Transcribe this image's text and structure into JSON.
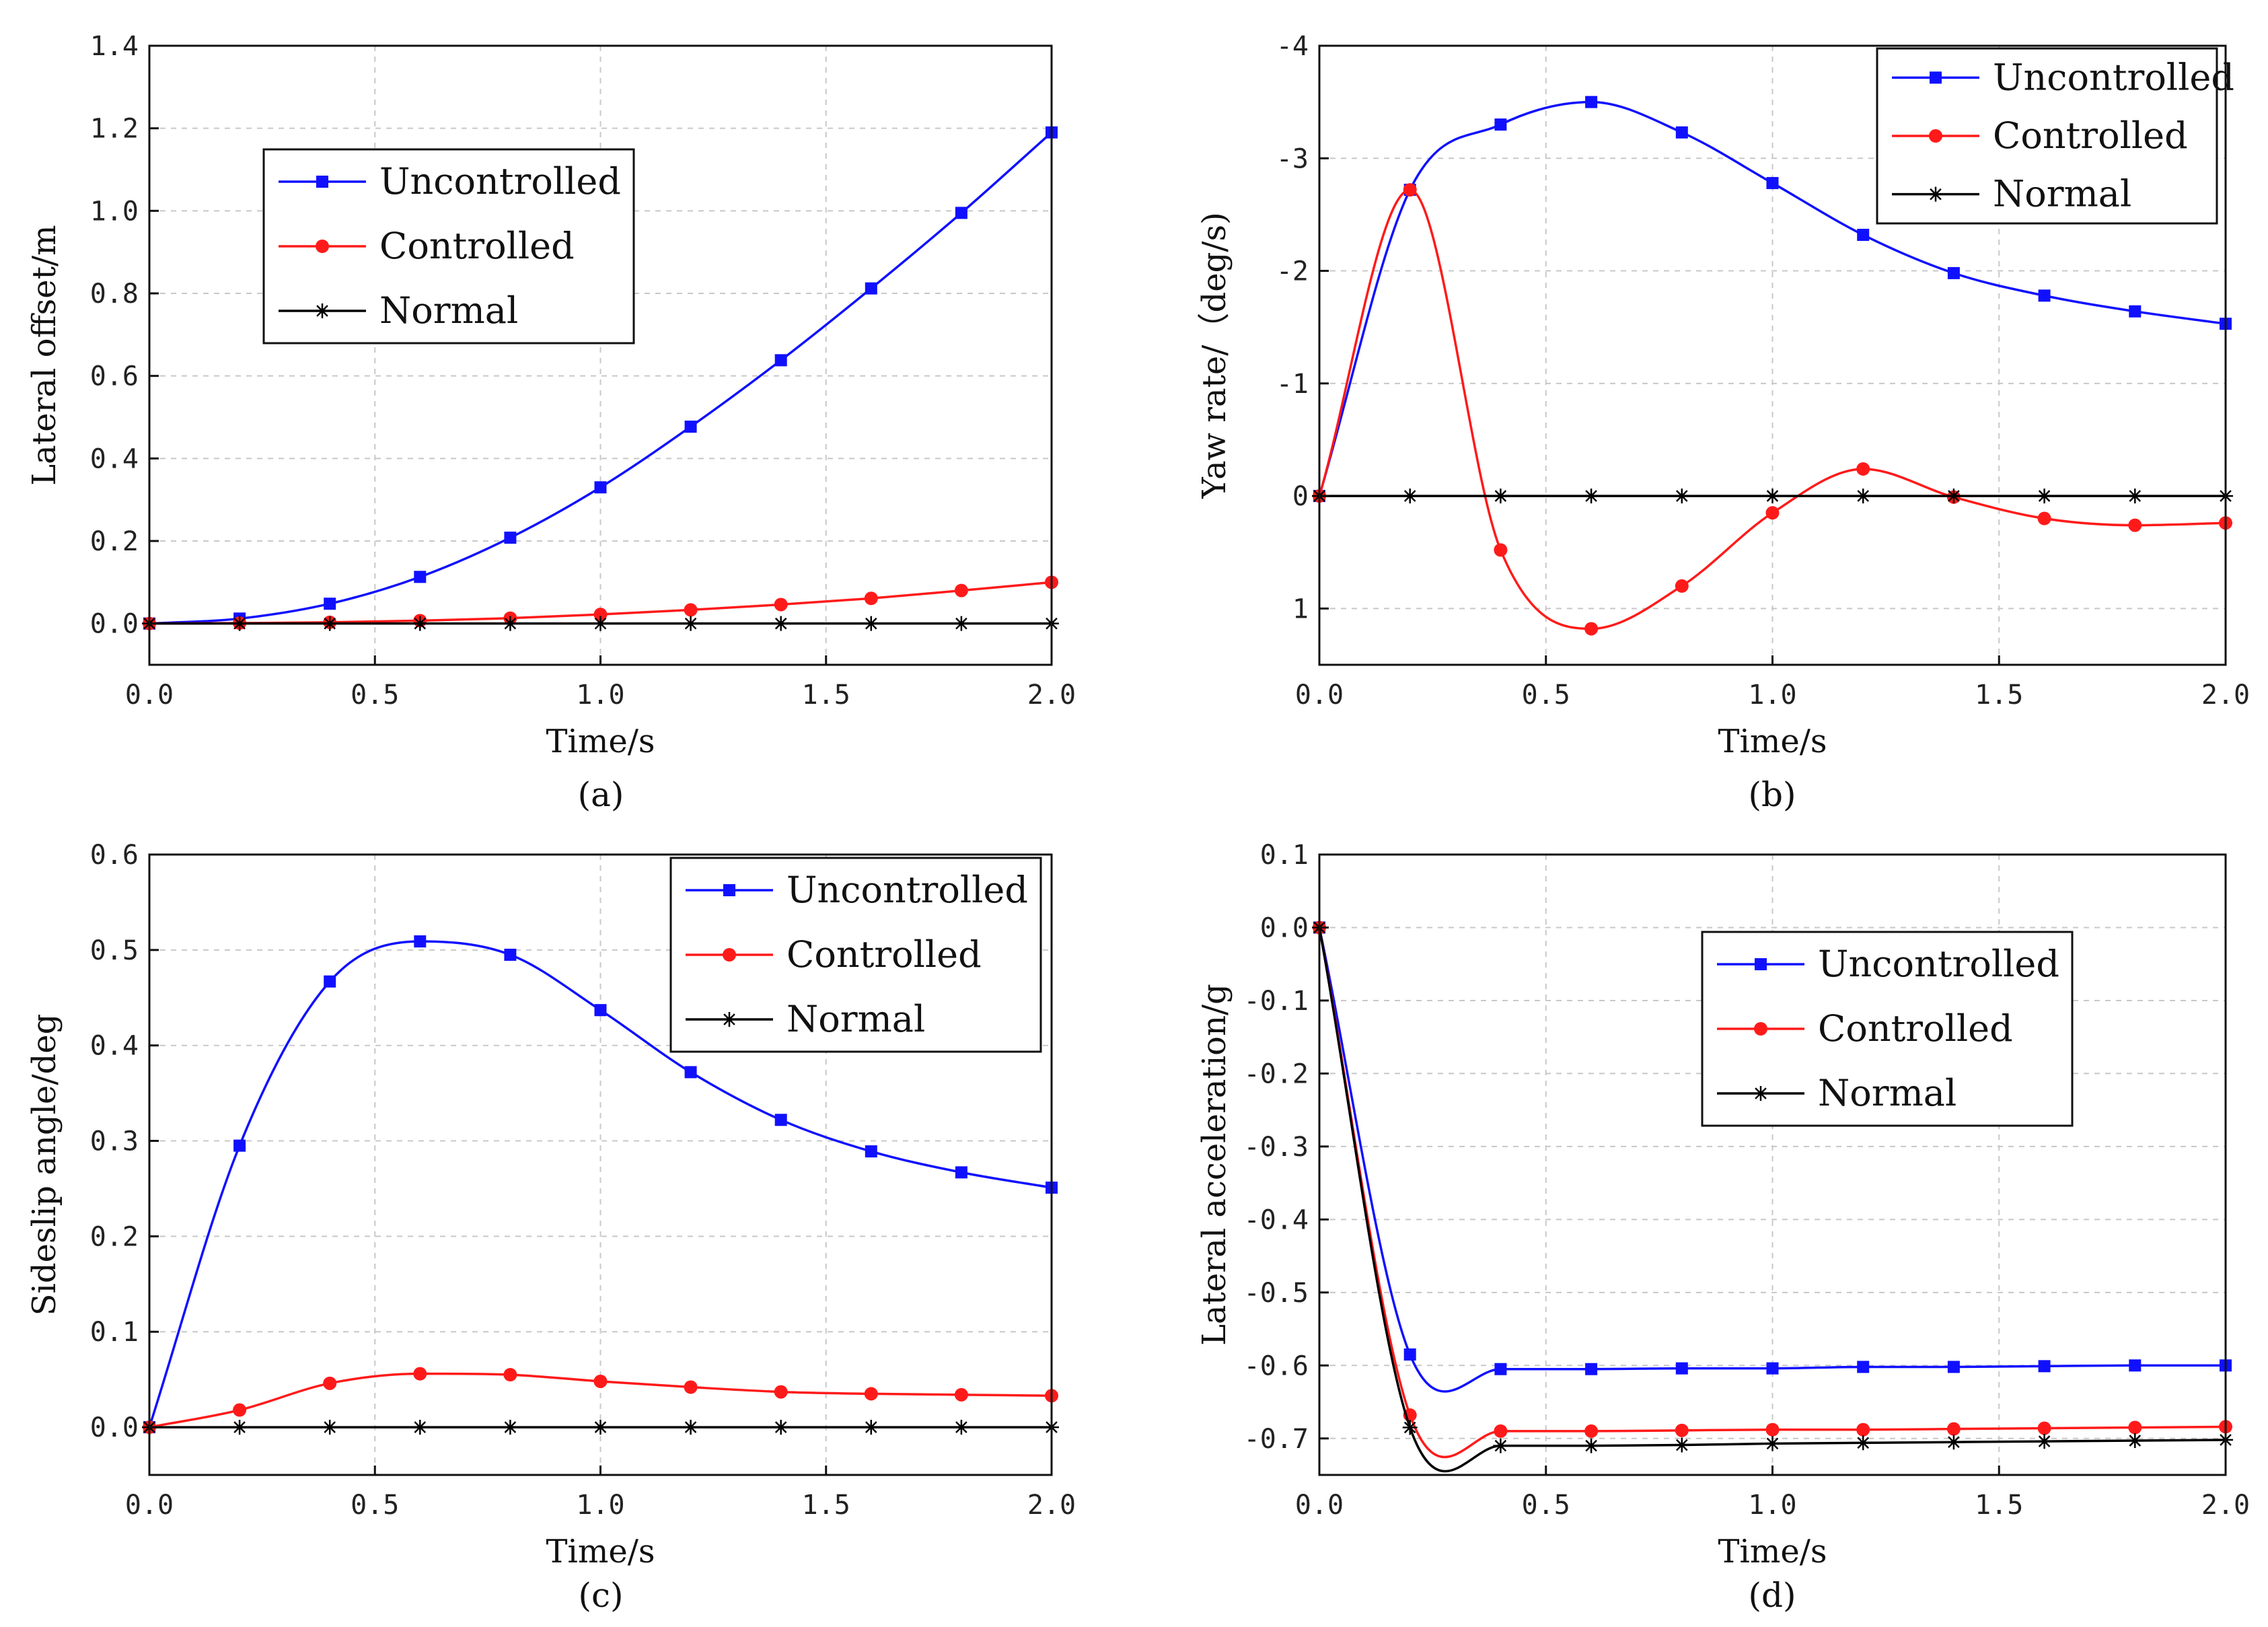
{
  "series_meta": [
    {
      "name": "Uncontrolled",
      "color": "#1010ff",
      "marker": "square"
    },
    {
      "name": "Controlled",
      "color": "#ff1a1a",
      "marker": "circle"
    },
    {
      "name": "Normal",
      "color": "#000000",
      "marker": "star"
    }
  ],
  "chart_data": [
    {
      "type": "line",
      "caption": "(a)",
      "xlabel": "Time/s",
      "ylabel": "Lateral offset/m",
      "xlim": [
        0,
        2.0
      ],
      "ylim": [
        -0.1,
        1.4
      ],
      "y_inverted": false,
      "x_ticks": [
        "0.0",
        "0.5",
        "1.0",
        "1.5",
        "2.0"
      ],
      "y_ticks": [
        "0.0",
        "0.2",
        "0.4",
        "0.6",
        "0.8",
        "1.0",
        "1.2",
        "1.4"
      ],
      "legend_position": "upper-left",
      "grid": true,
      "x": [
        0,
        0.2,
        0.4,
        0.6,
        0.8,
        1.0,
        1.2,
        1.4,
        1.6,
        1.8,
        2.0
      ],
      "series": [
        {
          "name": "Uncontrolled",
          "values": [
            0,
            0.012,
            0.048,
            0.113,
            0.208,
            0.33,
            0.477,
            0.638,
            0.812,
            0.995,
            1.19
          ]
        },
        {
          "name": "Controlled",
          "values": [
            0,
            0.001,
            0.003,
            0.007,
            0.013,
            0.022,
            0.033,
            0.046,
            0.061,
            0.08,
            0.1
          ]
        },
        {
          "name": "Normal",
          "values": [
            0,
            0,
            0,
            0,
            0,
            0,
            0,
            0,
            0,
            0,
            0
          ]
        }
      ]
    },
    {
      "type": "line",
      "caption": "(b)",
      "xlabel": "Time/s",
      "ylabel": "Yaw rate/（deg/s)",
      "xlim": [
        0,
        2.0
      ],
      "ylim": [
        -4,
        1.5
      ],
      "y_inverted": true,
      "x_ticks": [
        "0.0",
        "0.5",
        "1.0",
        "1.5",
        "2.0"
      ],
      "y_ticks": [
        "-4",
        "-3",
        "-2",
        "-1",
        "0",
        "1"
      ],
      "legend_position": "upper-right",
      "grid": true,
      "x": [
        0,
        0.2,
        0.4,
        0.6,
        0.8,
        1.0,
        1.2,
        1.4,
        1.6,
        1.8,
        2.0
      ],
      "series": [
        {
          "name": "Uncontrolled",
          "values": [
            0,
            -2.72,
            -3.3,
            -3.5,
            -3.23,
            -2.78,
            -2.32,
            -1.98,
            -1.78,
            -1.64,
            -1.53
          ]
        },
        {
          "name": "Controlled",
          "values": [
            0,
            -2.72,
            0.48,
            1.18,
            0.8,
            0.15,
            -0.24,
            0.01,
            0.2,
            0.26,
            0.24
          ]
        },
        {
          "name": "Normal",
          "values": [
            0,
            0,
            0,
            0,
            0,
            0,
            0,
            0,
            0,
            0,
            0
          ]
        }
      ]
    },
    {
      "type": "line",
      "caption": "(c)",
      "xlabel": "Time/s",
      "ylabel": "Sideslip angle/deg",
      "xlim": [
        0,
        2.0
      ],
      "ylim": [
        -0.05,
        0.6
      ],
      "y_inverted": false,
      "x_ticks": [
        "0.0",
        "0.5",
        "1.0",
        "1.5",
        "2.0"
      ],
      "y_ticks": [
        "0.0",
        "0.1",
        "0.2",
        "0.3",
        "0.4",
        "0.5",
        "0.6"
      ],
      "legend_position": "upper-right",
      "grid": true,
      "x": [
        0,
        0.2,
        0.4,
        0.6,
        0.8,
        1.0,
        1.2,
        1.4,
        1.6,
        1.8,
        2.0
      ],
      "series": [
        {
          "name": "Uncontrolled",
          "values": [
            0,
            0.295,
            0.467,
            0.509,
            0.495,
            0.437,
            0.372,
            0.322,
            0.289,
            0.267,
            0.251
          ]
        },
        {
          "name": "Controlled",
          "values": [
            0,
            0.018,
            0.046,
            0.056,
            0.055,
            0.048,
            0.042,
            0.037,
            0.035,
            0.034,
            0.033
          ]
        },
        {
          "name": "Normal",
          "values": [
            0,
            0,
            0,
            0,
            0,
            0,
            0,
            0,
            0,
            0,
            0
          ]
        }
      ]
    },
    {
      "type": "line",
      "caption": "(d)",
      "xlabel": "Time/s",
      "ylabel": "Lateral acceleration/g",
      "xlim": [
        0,
        2.0
      ],
      "ylim": [
        -0.75,
        0.1
      ],
      "y_inverted": false,
      "x_ticks": [
        "0.0",
        "0.5",
        "1.0",
        "1.5",
        "2.0"
      ],
      "y_ticks": [
        "0.1",
        "0.0",
        "-0.1",
        "-0.2",
        "-0.3",
        "-0.4",
        "-0.5",
        "-0.6",
        "-0.7"
      ],
      "legend_position": "upper-right",
      "grid": true,
      "x": [
        0,
        0.2,
        0.4,
        0.6,
        0.8,
        1.0,
        1.2,
        1.4,
        1.6,
        1.8,
        2.0
      ],
      "series": [
        {
          "name": "Uncontrolled",
          "values": [
            0,
            -0.585,
            -0.605,
            -0.605,
            -0.604,
            -0.604,
            -0.602,
            -0.602,
            -0.601,
            -0.6,
            -0.6
          ]
        },
        {
          "name": "Controlled",
          "values": [
            0,
            -0.668,
            -0.69,
            -0.69,
            -0.689,
            -0.688,
            -0.688,
            -0.687,
            -0.686,
            -0.685,
            -0.684
          ]
        },
        {
          "name": "Normal",
          "values": [
            0,
            -0.685,
            -0.71,
            -0.71,
            -0.709,
            -0.707,
            -0.706,
            -0.705,
            -0.704,
            -0.703,
            -0.702
          ]
        }
      ]
    }
  ]
}
